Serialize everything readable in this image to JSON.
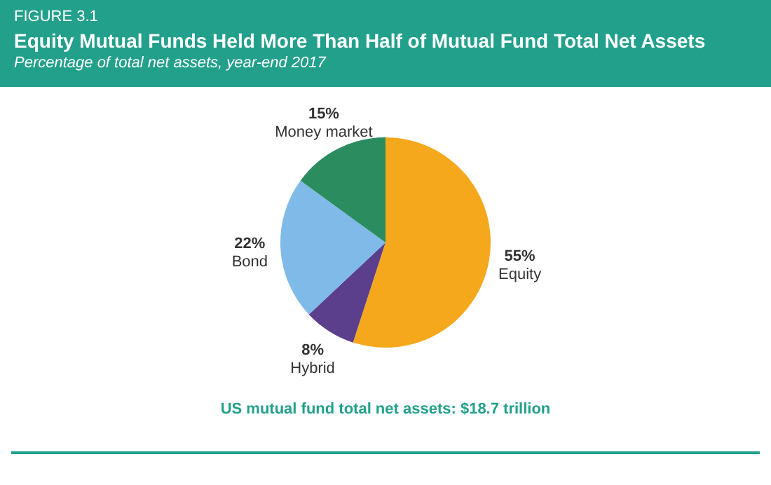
{
  "chart_data": {
    "type": "pie",
    "title": "Equity Mutual Funds Held More Than Half of Mutual Fund Total Net Assets",
    "subtitle": "Percentage of total net assets, year-end 2017",
    "categories": [
      "Equity",
      "Hybrid",
      "Bond",
      "Money market"
    ],
    "values": [
      55,
      8,
      22,
      15
    ],
    "colors": [
      "#f5a81c",
      "#5b3f8c",
      "#7fbae8",
      "#2b8c60"
    ],
    "value_labels": [
      "55%",
      "8%",
      "22%",
      "15%"
    ],
    "annotations": [
      "FIGURE 3.1",
      "US mutual fund total net assets: $18.7 trillion"
    ],
    "legend": false
  }
}
